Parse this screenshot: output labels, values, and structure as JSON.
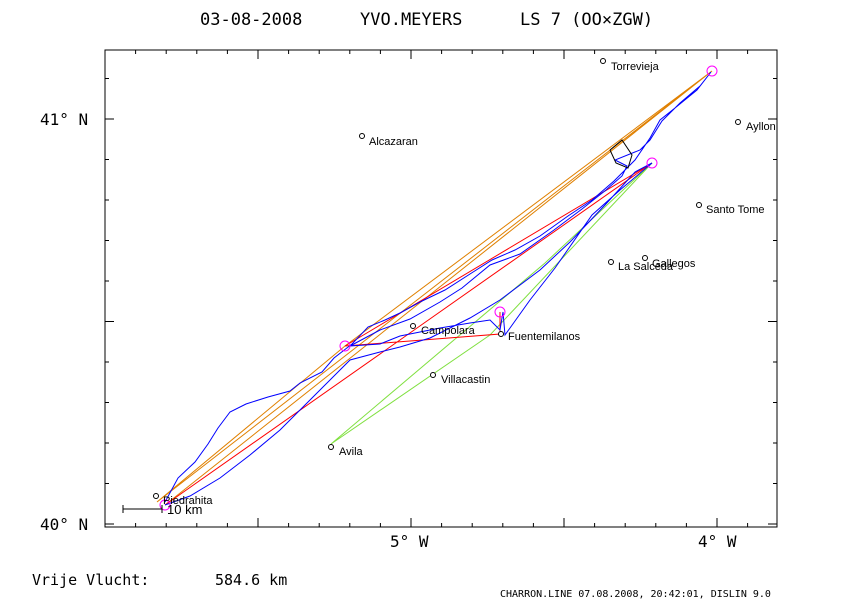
{
  "header": {
    "date": "03-08-2008",
    "pilot": "YVO.MEYERS",
    "glider": "LS 7 (OO×ZGW)"
  },
  "axes": {
    "lat_labels": [
      "41° N",
      "40° N"
    ],
    "lon_labels": [
      "5° W",
      "4° W"
    ]
  },
  "scale_bar": {
    "label": "10 km"
  },
  "towns": [
    {
      "name": "Torrevieja"
    },
    {
      "name": "Ayllon"
    },
    {
      "name": "Alcazaran"
    },
    {
      "name": "Santo Tome"
    },
    {
      "name": "Gallegos"
    },
    {
      "name": "La Salceda"
    },
    {
      "name": "Campolara"
    },
    {
      "name": "Fuentemilanos"
    },
    {
      "name": "Villacastin"
    },
    {
      "name": "Avila"
    },
    {
      "name": "Piedrahita"
    }
  ],
  "footer": {
    "distance_label": "Vrije Vlucht:",
    "distance_value": "584.6 km",
    "stamp": "CHARRON.LINE 07.08.2008, 20:42:01, DISLIN 9.0"
  },
  "colors": {
    "track": "#0000ff",
    "task_line": "#ff0000",
    "optimized_line": "#e08000",
    "alt_route": "#80e040",
    "turnpoint": "#ff00ff",
    "frame": "#000000"
  }
}
